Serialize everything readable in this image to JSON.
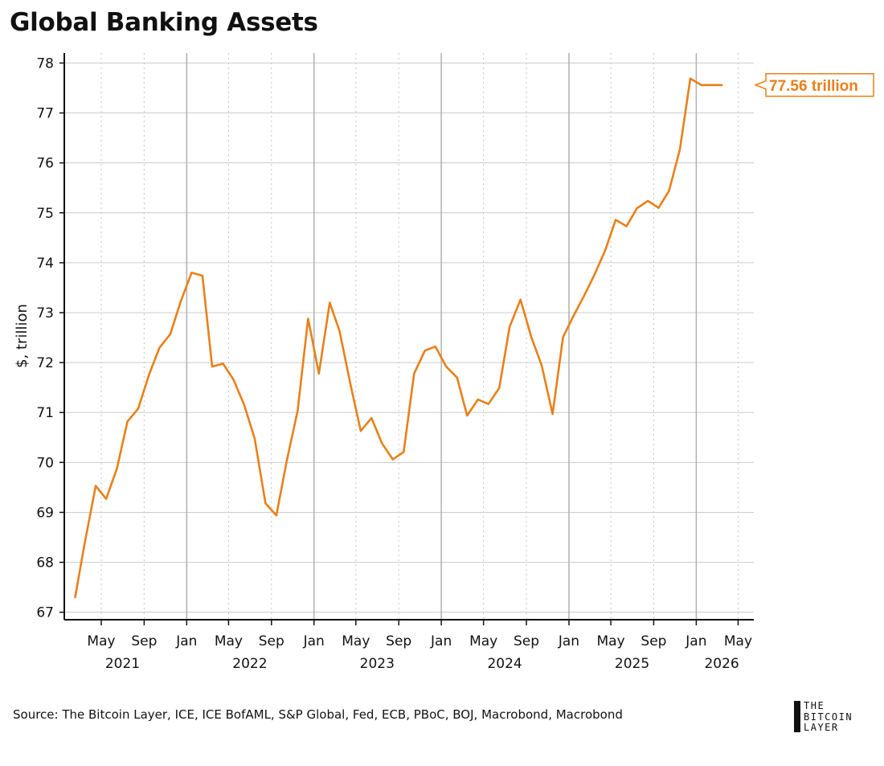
{
  "chart_title": "Global Banking Assets",
  "source": "Source: The Bitcoin Layer, ICE, ICE BofAML, S&P Global, Fed, ECB, PBoC, BOJ, Macrobond, Macrobond",
  "brand": {
    "line1": "THE",
    "line2": "BITCOIN",
    "line3": "LAYER"
  },
  "colors": {
    "series": "#E8801A",
    "axis": "#111111",
    "grid": "#cccccc",
    "year_grid": "#b0b0b0"
  },
  "chart_data": {
    "type": "line",
    "title": "Global Banking Assets",
    "xlabel": "",
    "ylabel": "$, trillion",
    "ylim": [
      66.85,
      78.2
    ],
    "x_range": [
      "2021-01-15",
      "2026-06-15"
    ],
    "y_ticks": [
      67,
      68,
      69,
      70,
      71,
      72,
      73,
      74,
      75,
      76,
      77,
      78
    ],
    "x_ticks": [
      {
        "date": "2021-05-01",
        "label": "May"
      },
      {
        "date": "2021-09-01",
        "label": "Sep"
      },
      {
        "date": "2022-01-01",
        "label": "Jan"
      },
      {
        "date": "2022-05-01",
        "label": "May"
      },
      {
        "date": "2022-09-01",
        "label": "Sep"
      },
      {
        "date": "2023-01-01",
        "label": "Jan"
      },
      {
        "date": "2023-05-01",
        "label": "May"
      },
      {
        "date": "2023-09-01",
        "label": "Sep"
      },
      {
        "date": "2024-01-01",
        "label": "Jan"
      },
      {
        "date": "2024-05-01",
        "label": "May"
      },
      {
        "date": "2024-09-01",
        "label": "Sep"
      },
      {
        "date": "2025-01-01",
        "label": "Jan"
      },
      {
        "date": "2025-05-01",
        "label": "May"
      },
      {
        "date": "2025-09-01",
        "label": "Sep"
      },
      {
        "date": "2026-01-01",
        "label": "Jan"
      },
      {
        "date": "2026-05-01",
        "label": "May"
      }
    ],
    "year_labels": [
      {
        "date": "2021-07-01",
        "label": "2021"
      },
      {
        "date": "2022-07-01",
        "label": "2022"
      },
      {
        "date": "2023-07-01",
        "label": "2023"
      },
      {
        "date": "2024-07-01",
        "label": "2024"
      },
      {
        "date": "2025-07-01",
        "label": "2025"
      },
      {
        "date": "2026-03-15",
        "label": "2026"
      }
    ],
    "year_gridlines": [
      "2022-01-01",
      "2023-01-01",
      "2024-01-01",
      "2025-01-01",
      "2026-01-01"
    ],
    "series": [
      {
        "name": "Global Banking Assets",
        "x": [
          "2021-02",
          "2021-03",
          "2021-04",
          "2021-05",
          "2021-06",
          "2021-07",
          "2021-08",
          "2021-09",
          "2021-10",
          "2021-11",
          "2021-12",
          "2022-01",
          "2022-02",
          "2022-03",
          "2022-04",
          "2022-05",
          "2022-06",
          "2022-07",
          "2022-08",
          "2022-09",
          "2022-10",
          "2022-11",
          "2022-12",
          "2023-01",
          "2023-02",
          "2023-03",
          "2023-04",
          "2023-05",
          "2023-06",
          "2023-07",
          "2023-08",
          "2023-09",
          "2023-10",
          "2023-11",
          "2023-12",
          "2024-01",
          "2024-02",
          "2024-03",
          "2024-04",
          "2024-05",
          "2024-06",
          "2024-07",
          "2024-08",
          "2024-09",
          "2024-10",
          "2024-11",
          "2024-12",
          "2025-01",
          "2025-02",
          "2025-03",
          "2025-04",
          "2025-05",
          "2025-06",
          "2025-07",
          "2025-08",
          "2025-09",
          "2025-10",
          "2025-11",
          "2025-12",
          "2026-01",
          "2026-02",
          "2026-03"
        ],
        "values": [
          67.3,
          68.4,
          69.53,
          69.27,
          69.88,
          70.82,
          71.08,
          71.76,
          72.3,
          72.57,
          73.23,
          73.8,
          73.74,
          71.92,
          71.98,
          71.66,
          71.15,
          70.47,
          69.18,
          68.94,
          70.04,
          71.03,
          72.88,
          71.78,
          73.2,
          72.64,
          71.58,
          70.63,
          70.89,
          70.38,
          70.06,
          70.21,
          71.78,
          72.24,
          72.32,
          71.92,
          71.7,
          70.94,
          71.26,
          71.17,
          71.49,
          72.72,
          73.26,
          72.51,
          71.94,
          70.97,
          72.51,
          72.95,
          73.36,
          73.76,
          74.25,
          74.86,
          74.73,
          75.09,
          75.24,
          75.1,
          75.44,
          76.27,
          77.69,
          77.56,
          77.56,
          77.56
        ]
      }
    ],
    "annotation": {
      "text": "77.56 trillion",
      "value": 77.56
    }
  }
}
